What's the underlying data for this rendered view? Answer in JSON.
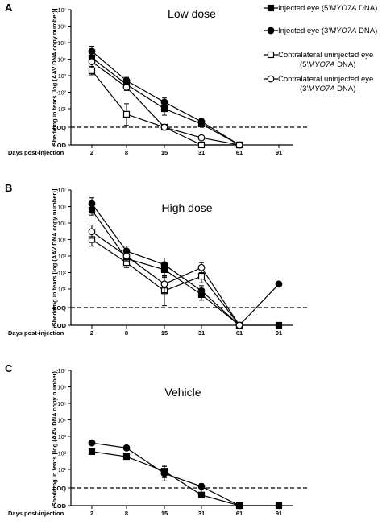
{
  "chart_data": [
    {
      "type": "line",
      "panel": "A",
      "title": "Low dose",
      "xlabel": "Days post-injection",
      "ylabel": "Shedding in tears [log (AAV DNA copy number)]",
      "categories": [
        "2",
        "8",
        "15",
        "31",
        "61",
        "91"
      ],
      "y_ticks": [
        "LOD",
        "LOQ",
        "10¹",
        "10²",
        "10³",
        "10⁴",
        "10⁵",
        "10⁶",
        "10⁷"
      ],
      "y_scale": "log",
      "loq_line": "dashed",
      "series": [
        {
          "name": "Injected eye (5'MYO7A DNA)",
          "marker": "filled-square",
          "values": [
            12000,
            300,
            10,
            1.5,
            0.5,
            null
          ],
          "err": [
            0.3,
            0.2,
            0.35,
            0.15,
            0,
            0
          ]
        },
        {
          "name": "Injected eye (3'MYO7A DNA)",
          "marker": "filled-circle",
          "values": [
            30000,
            500,
            25,
            2,
            0.5,
            null
          ],
          "err": [
            0.3,
            0.2,
            0.25,
            0.15,
            0,
            0
          ]
        },
        {
          "name": "Contralateral uninjected eye (5'MYO7A DNA)",
          "marker": "open-square",
          "values": [
            2000,
            5,
            1,
            0.5,
            0.5,
            null
          ],
          "err": [
            0.25,
            0.6,
            0,
            0,
            0,
            0
          ]
        },
        {
          "name": "Contralateral uninjected eye (3'MYO7A DNA)",
          "marker": "open-circle",
          "values": [
            7000,
            200,
            1,
            0.7,
            0.5,
            null
          ],
          "err": [
            0.3,
            0.2,
            0,
            0,
            0,
            0
          ]
        }
      ]
    },
    {
      "type": "line",
      "panel": "B",
      "title": "High dose",
      "xlabel": "Days post-injection",
      "ylabel": "Shedding in tears [log (AAV DNA copy number)]",
      "categories": [
        "2",
        "8",
        "15",
        "31",
        "61",
        "91"
      ],
      "y_ticks": [
        "LOD",
        "LOQ",
        "10¹",
        "10²",
        "10³",
        "10⁴",
        "10⁵",
        "10⁶",
        "10⁷"
      ],
      "y_scale": "log",
      "loq_line": "dashed",
      "series": [
        {
          "name": "Injected eye (5'MYO7A DNA)",
          "marker": "filled-square",
          "values": [
            600000,
            700,
            150,
            5,
            0.3,
            0.5
          ],
          "err": [
            0.3,
            0.3,
            0.4,
            0.3,
            0,
            0
          ]
        },
        {
          "name": "Injected eye (3'MYO7A DNA)",
          "marker": "filled-circle",
          "values": [
            1500000,
            2000,
            300,
            8,
            0.5,
            20
          ],
          "err": [
            0.35,
            0.3,
            0.4,
            0.3,
            0,
            0
          ]
        },
        {
          "name": "Contralateral uninjected eye (5'MYO7A DNA)",
          "marker": "open-square",
          "values": [
            10000,
            400,
            8,
            60,
            0.5,
            null
          ],
          "err": [
            0.4,
            0.3,
            0.8,
            0.4,
            0,
            0
          ]
        },
        {
          "name": "Contralateral uninjected eye (3'MYO7A DNA)",
          "marker": "open-circle",
          "values": [
            30000,
            1000,
            20,
            200,
            0.5,
            null
          ],
          "err": [
            0.4,
            0.3,
            0.5,
            0.3,
            0,
            0
          ]
        }
      ]
    },
    {
      "type": "line",
      "panel": "C",
      "title": "Vehicle",
      "xlabel": "Days post-injection",
      "ylabel": "Shedding in tears [log (AAV DNA copy number)]",
      "categories": [
        "2",
        "8",
        "15",
        "31",
        "61",
        "91"
      ],
      "y_ticks": [
        "LOD",
        "LOQ",
        "10¹",
        "10²",
        "10³",
        "10⁴",
        "10⁵",
        "10⁶",
        "10⁷"
      ],
      "y_scale": "log",
      "loq_line": "dashed",
      "series": [
        {
          "name": "Injected eye (5'MYO7A DNA)",
          "marker": "filled-square",
          "values": [
            120,
            60,
            8,
            0.8,
            0.5,
            0.5
          ],
          "err": [
            0.15,
            0.1,
            0.35,
            0.15,
            0,
            0
          ]
        },
        {
          "name": "Injected eye (3'MYO7A DNA)",
          "marker": "filled-circle",
          "values": [
            400,
            200,
            6,
            1.2,
            0.5,
            null
          ],
          "err": [
            0.1,
            0.05,
            0.4,
            0.15,
            0,
            0
          ]
        }
      ]
    }
  ],
  "legend": {
    "items": [
      {
        "text_before": "Injected eye (5'",
        "italic": "MYO7A",
        "text_after": " DNA)",
        "marker": "filled-square"
      },
      {
        "text_before": "Injected eye (3'",
        "italic": "MYO7A",
        "text_after": " DNA)",
        "marker": "filled-circle"
      },
      {
        "line1": "Contralateral uninjected eye",
        "text_before": "(5'",
        "italic": "MYO7A",
        "text_after": " DNA)",
        "marker": "open-square"
      },
      {
        "line1": "Contralateral uninjected eye",
        "text_before": "(3'",
        "italic": "MYO7A",
        "text_after": " DNA)",
        "marker": "open-circle"
      }
    ]
  }
}
